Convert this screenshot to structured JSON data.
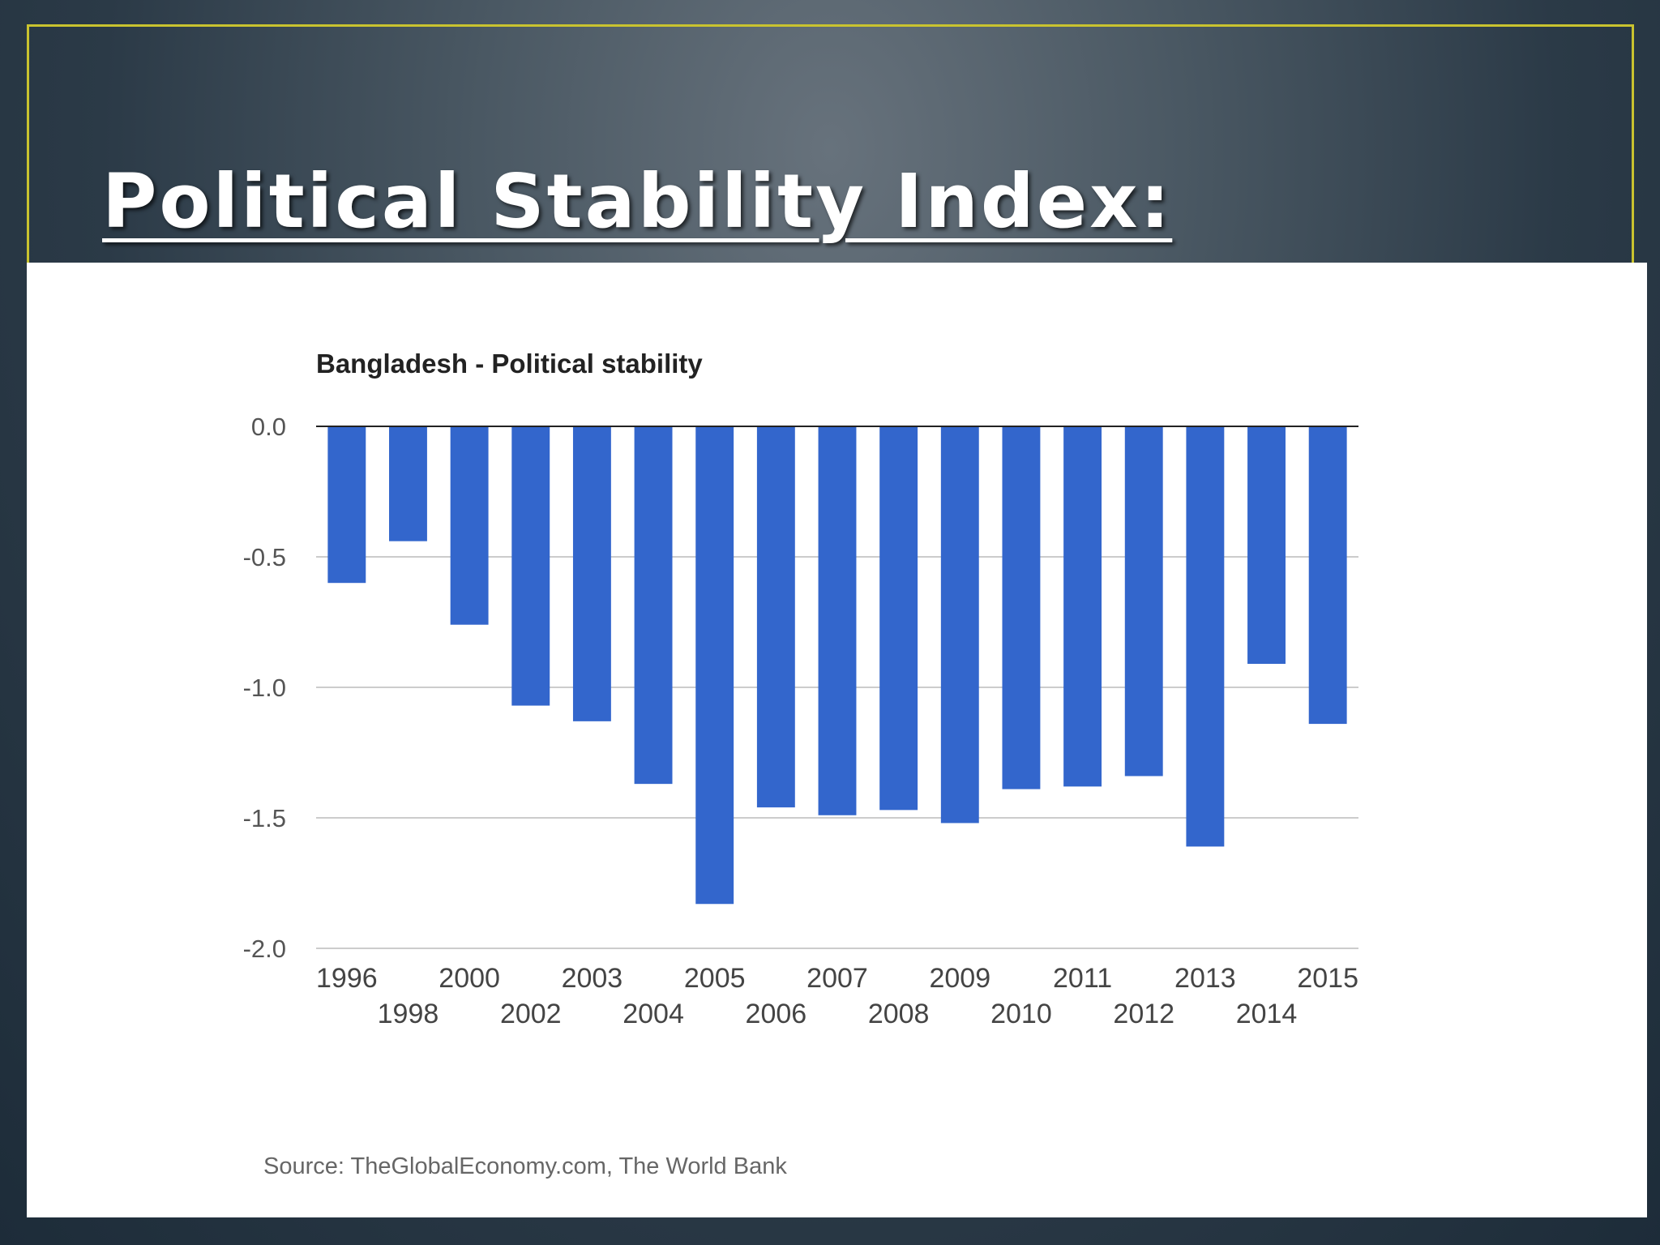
{
  "slide": {
    "title": "Political Stability Index:"
  },
  "chart_data": {
    "type": "bar",
    "title": "Bangladesh - Political stability",
    "source": "Source: TheGlobalEconomy.com, The World Bank",
    "categories": [
      "1996",
      "1998",
      "2000",
      "2002",
      "2003",
      "2004",
      "2005",
      "2006",
      "2007",
      "2008",
      "2009",
      "2010",
      "2011",
      "2012",
      "2013",
      "2014",
      "2015"
    ],
    "values": [
      -0.6,
      -0.44,
      -0.76,
      -1.07,
      -1.13,
      -1.37,
      -1.83,
      -1.46,
      -1.49,
      -1.47,
      -1.52,
      -1.39,
      -1.38,
      -1.34,
      -1.61,
      -0.91,
      -1.14
    ],
    "ylim": [
      -2.0,
      0.0
    ],
    "yticks": [
      0.0,
      -0.5,
      -1.0,
      -1.5,
      -2.0
    ],
    "ytick_labels": [
      "0.0",
      "-0.5",
      "-1.0",
      "-1.5",
      "-2.0"
    ],
    "grid": true,
    "bar_color": "#3366cc"
  }
}
